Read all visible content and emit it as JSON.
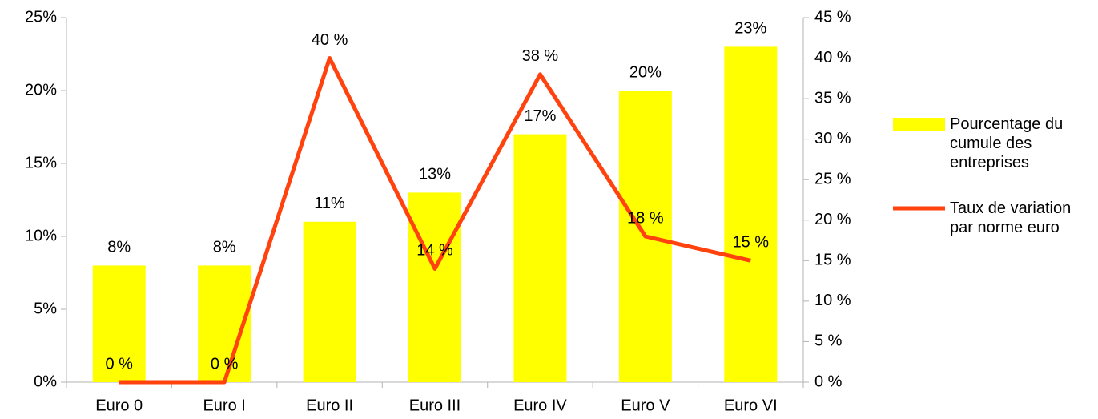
{
  "chart_data": {
    "type": "bar",
    "categories": [
      "Euro 0",
      "Euro I",
      "Euro II",
      "Euro III",
      "Euro IV",
      "Euro V",
      "Euro VI"
    ],
    "series": [
      {
        "name": "Pourcentage du cumule des entreprises",
        "type": "bar",
        "color": "#ffff00",
        "values": [
          8,
          8,
          11,
          13,
          17,
          20,
          23
        ],
        "value_labels": [
          "8%",
          "8%",
          "11%",
          "13%",
          "17%",
          "20%",
          "23%"
        ]
      },
      {
        "name": "Taux de variation par norme euro",
        "type": "line",
        "axis": "y2",
        "color": "#ff420e",
        "values": [
          0,
          0,
          40,
          14,
          38,
          18,
          15
        ],
        "value_labels": [
          "0 %",
          "0 %",
          "40 %",
          "14 %",
          "38 %",
          "18 %",
          "15 %"
        ]
      }
    ],
    "ylim": [
      0,
      25
    ],
    "yticks": [
      {
        "value": 0,
        "label": "0%"
      },
      {
        "value": 5,
        "label": "5%"
      },
      {
        "value": 10,
        "label": "10%"
      },
      {
        "value": 15,
        "label": "15%"
      },
      {
        "value": 20,
        "label": "20%"
      },
      {
        "value": 25,
        "label": "25%"
      }
    ],
    "y2lim": [
      0,
      45
    ],
    "y2ticks": [
      {
        "value": 0,
        "label": "0 %"
      },
      {
        "value": 5,
        "label": "5 %"
      },
      {
        "value": 10,
        "label": "10 %"
      },
      {
        "value": 15,
        "label": "15 %"
      },
      {
        "value": 20,
        "label": "20 %"
      },
      {
        "value": 25,
        "label": "25 %"
      },
      {
        "value": 30,
        "label": "30 %"
      },
      {
        "value": 35,
        "label": "35 %"
      },
      {
        "value": 40,
        "label": "40 %"
      },
      {
        "value": 45,
        "label": "45 %"
      }
    ],
    "grid": false,
    "legend": "right"
  }
}
